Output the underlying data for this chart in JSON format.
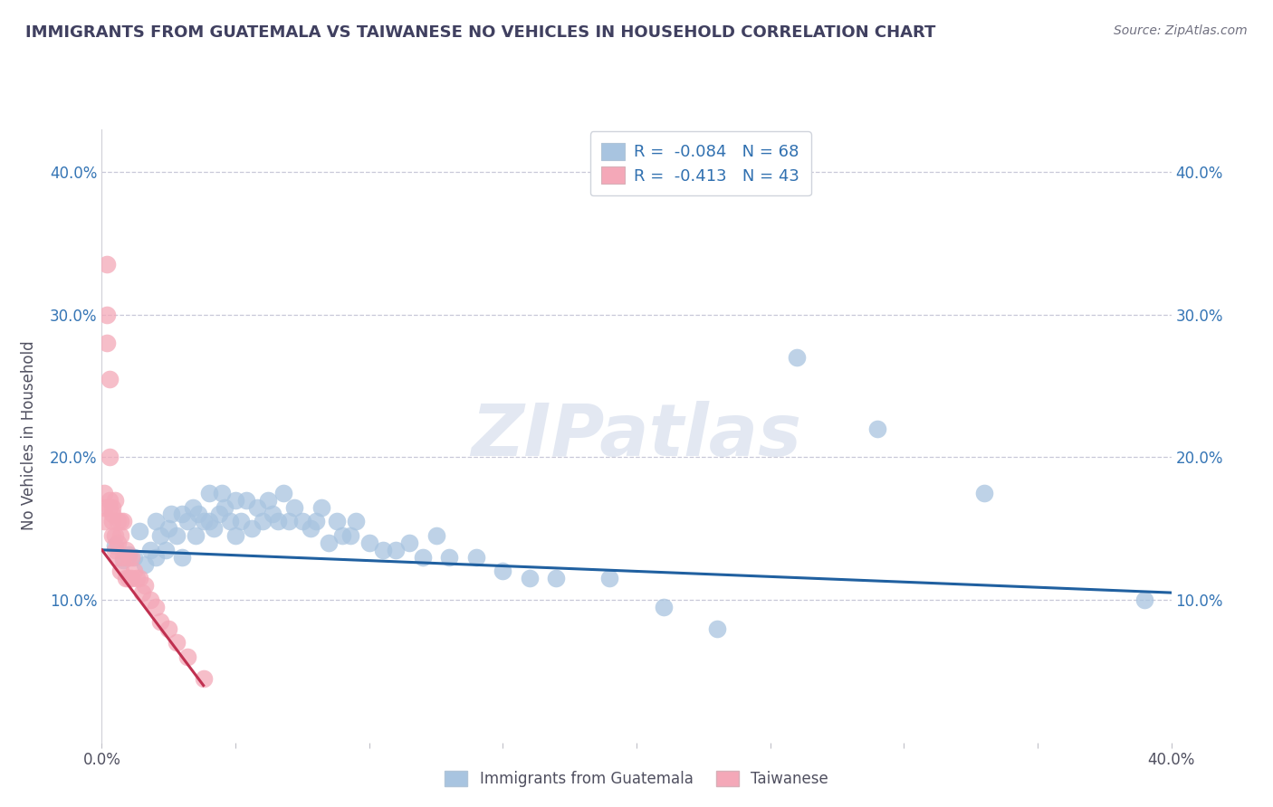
{
  "title": "IMMIGRANTS FROM GUATEMALA VS TAIWANESE NO VEHICLES IN HOUSEHOLD CORRELATION CHART",
  "source": "Source: ZipAtlas.com",
  "ylabel": "No Vehicles in Household",
  "watermark": "ZIPatlas",
  "xlim": [
    0.0,
    0.4
  ],
  "ylim": [
    0.0,
    0.43
  ],
  "legend_labels": [
    "Immigrants from Guatemala",
    "Taiwanese"
  ],
  "blue_R": -0.084,
  "blue_N": 68,
  "pink_R": -0.413,
  "pink_N": 43,
  "blue_color": "#a8c4e0",
  "pink_color": "#f4a8b8",
  "blue_line_color": "#2060a0",
  "pink_line_color": "#c03050",
  "grid_color": "#c8c8d8",
  "title_color": "#404060",
  "legend_text_color": "#3070b0",
  "blue_scatter_x": [
    0.005,
    0.008,
    0.01,
    0.012,
    0.014,
    0.016,
    0.018,
    0.02,
    0.02,
    0.022,
    0.024,
    0.025,
    0.026,
    0.028,
    0.03,
    0.03,
    0.032,
    0.034,
    0.035,
    0.036,
    0.038,
    0.04,
    0.04,
    0.042,
    0.044,
    0.045,
    0.046,
    0.048,
    0.05,
    0.05,
    0.052,
    0.054,
    0.056,
    0.058,
    0.06,
    0.062,
    0.064,
    0.066,
    0.068,
    0.07,
    0.072,
    0.075,
    0.078,
    0.08,
    0.082,
    0.085,
    0.088,
    0.09,
    0.093,
    0.095,
    0.1,
    0.105,
    0.11,
    0.115,
    0.12,
    0.125,
    0.13,
    0.14,
    0.15,
    0.16,
    0.17,
    0.19,
    0.21,
    0.23,
    0.26,
    0.29,
    0.33,
    0.39
  ],
  "blue_scatter_y": [
    0.138,
    0.128,
    0.132,
    0.13,
    0.148,
    0.125,
    0.135,
    0.13,
    0.155,
    0.145,
    0.135,
    0.15,
    0.16,
    0.145,
    0.13,
    0.16,
    0.155,
    0.165,
    0.145,
    0.16,
    0.155,
    0.155,
    0.175,
    0.15,
    0.16,
    0.175,
    0.165,
    0.155,
    0.145,
    0.17,
    0.155,
    0.17,
    0.15,
    0.165,
    0.155,
    0.17,
    0.16,
    0.155,
    0.175,
    0.155,
    0.165,
    0.155,
    0.15,
    0.155,
    0.165,
    0.14,
    0.155,
    0.145,
    0.145,
    0.155,
    0.14,
    0.135,
    0.135,
    0.14,
    0.13,
    0.145,
    0.13,
    0.13,
    0.12,
    0.115,
    0.115,
    0.115,
    0.095,
    0.08,
    0.27,
    0.22,
    0.175,
    0.1
  ],
  "pink_scatter_x": [
    0.001,
    0.001,
    0.001,
    0.002,
    0.002,
    0.002,
    0.003,
    0.003,
    0.003,
    0.003,
    0.004,
    0.004,
    0.004,
    0.004,
    0.005,
    0.005,
    0.005,
    0.006,
    0.006,
    0.006,
    0.007,
    0.007,
    0.007,
    0.008,
    0.008,
    0.009,
    0.009,
    0.01,
    0.01,
    0.011,
    0.011,
    0.012,
    0.013,
    0.014,
    0.015,
    0.016,
    0.018,
    0.02,
    0.022,
    0.025,
    0.028,
    0.032,
    0.038
  ],
  "pink_scatter_y": [
    0.165,
    0.175,
    0.155,
    0.335,
    0.3,
    0.28,
    0.255,
    0.2,
    0.17,
    0.165,
    0.16,
    0.155,
    0.145,
    0.165,
    0.17,
    0.145,
    0.135,
    0.155,
    0.14,
    0.13,
    0.155,
    0.145,
    0.12,
    0.155,
    0.13,
    0.135,
    0.115,
    0.13,
    0.115,
    0.13,
    0.115,
    0.12,
    0.115,
    0.115,
    0.105,
    0.11,
    0.1,
    0.095,
    0.085,
    0.08,
    0.07,
    0.06,
    0.045
  ],
  "blue_line_x": [
    0.0,
    0.4
  ],
  "blue_line_y": [
    0.135,
    0.105
  ],
  "pink_line_x": [
    0.0,
    0.038
  ],
  "pink_line_y": [
    0.135,
    0.04
  ]
}
